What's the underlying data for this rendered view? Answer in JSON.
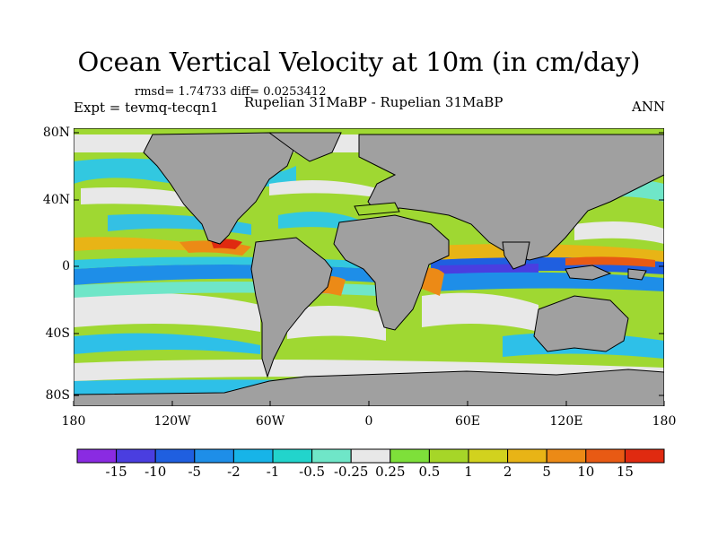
{
  "title": "Ocean Vertical Velocity at 10m (in cm/day)",
  "stats": "rmsd= 1.74733 diff= 0.0253412",
  "experiment": "Expt = tevmq-tecqn1",
  "subtitle": "Rupelian  31MaBP - Rupelian  31MaBP",
  "period": "ANN",
  "lat_labels": [
    "80N",
    "40N",
    "0",
    "40S",
    "80S"
  ],
  "lon_labels": [
    "180",
    "120W",
    "60W",
    "0",
    "60E",
    "120E",
    "180"
  ],
  "colorbar": {
    "labels": [
      "-15",
      "-10",
      "-5",
      "-2",
      "-1",
      "-0.5",
      "-0.25",
      "0.25",
      "0.5",
      "1",
      "2",
      "5",
      "10",
      "15"
    ],
    "colors": [
      "#8a2be2",
      "#4a3ee0",
      "#1f5fe0",
      "#1e8ee8",
      "#17b4e8",
      "#22d4cc",
      "#6fe6c8",
      "#e8e8e8",
      "#7ee03a",
      "#a6d628",
      "#d2d21e",
      "#e8b416",
      "#ec8a16",
      "#e85a14",
      "#e02a10"
    ]
  },
  "colors": {
    "land": "#a0a0a0",
    "neutral": "#e8e8e8"
  }
}
